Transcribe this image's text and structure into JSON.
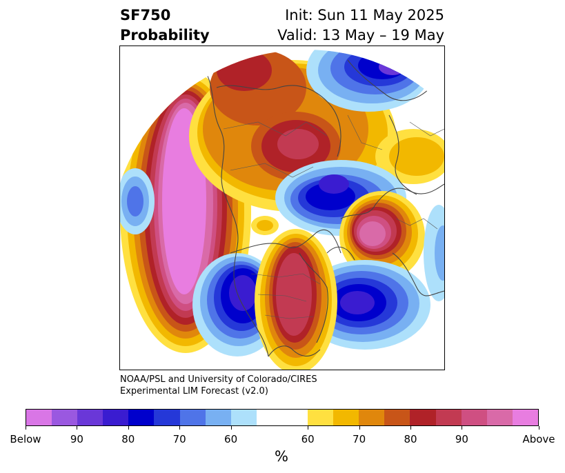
{
  "title": {
    "line1": "SF750",
    "line2": "Probability"
  },
  "subtitle": {
    "init": "Init: Sun 11 May 2025",
    "valid": "Valid: 13 May – 19 May"
  },
  "credit": {
    "line1": "NOAA/PSL and University of Colorado/CIRES",
    "line2": "Experimental LIM Forecast (v2.0)"
  },
  "colorbar": {
    "unit": "%",
    "colors": [
      "#d976e6",
      "#9a58e0",
      "#6a37d8",
      "#3a1cd0",
      "#0000cc",
      "#2538d8",
      "#4f74e8",
      "#78b0f2",
      "#ade0fb",
      "#ffffff",
      "#ffe040",
      "#f2b800",
      "#e0870c",
      "#c85518",
      "#b02228",
      "#c23a52",
      "#cf4f82",
      "#d96aa8",
      "#e87de0"
    ],
    "ticks": [
      "Below",
      "90",
      "80",
      "70",
      "60",
      "60",
      "70",
      "80",
      "90",
      "Above"
    ]
  },
  "map": {
    "projection": "north-polar-stereographic",
    "features": [
      "pacific-above-anomaly",
      "north-america-below-west",
      "north-america-above-east",
      "atlantic-below",
      "europe-above",
      "siberia-above",
      "arctic-below",
      "north-pacific-below"
    ]
  }
}
